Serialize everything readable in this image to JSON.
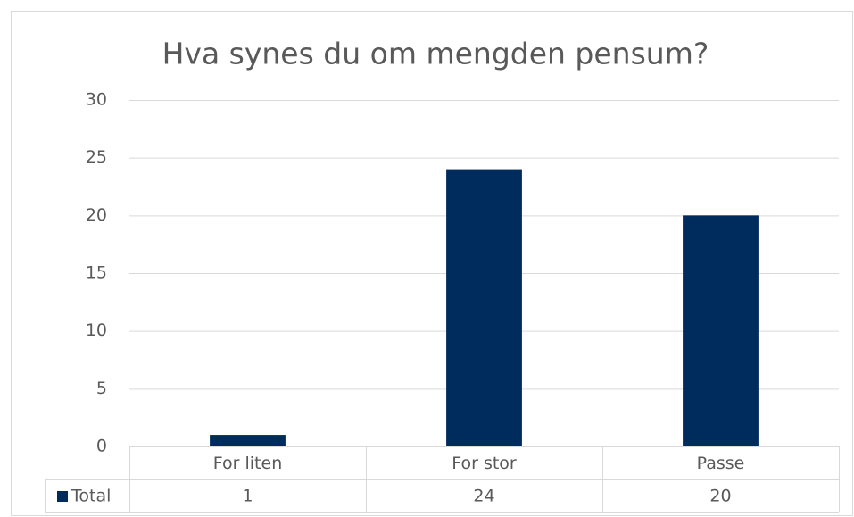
{
  "chart_data": {
    "type": "bar",
    "title": "Hva synes du om mengden pensum?",
    "categories": [
      "For liten",
      "For stor",
      "Passe"
    ],
    "series": [
      {
        "name": "Total",
        "color": "#002c5d",
        "values": [
          1,
          24,
          20
        ]
      }
    ],
    "ylim": [
      0,
      30
    ],
    "yticks": [
      0,
      5,
      10,
      15,
      20,
      25,
      30
    ],
    "grid": true,
    "data_table": true
  }
}
